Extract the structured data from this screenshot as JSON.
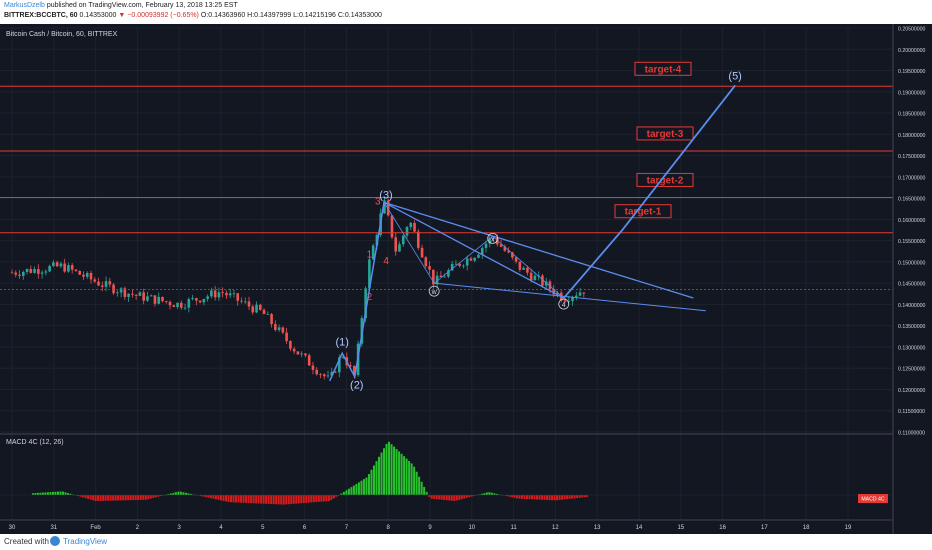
{
  "header": {
    "author": "MarkusDzelb",
    "published": "published on TradingView.com, February 13, 2018 13:25 EST",
    "symbol": "BITTREX:BCCBTC, 60",
    "price": "0.14353000",
    "change": "▼ −0.00093992 (−0.65%)",
    "ohlc": "O:0.14363960 H:0.14397999 L:0.14215196 C:0.14353000"
  },
  "chart": {
    "title": "Bitcoin Cash / Bitcoin, 60, BITTREX",
    "ytick_labels": [
      "0.20500000",
      "0.20000000",
      "0.19500000",
      "0.19000000",
      "0.18500000",
      "0.18000000",
      "0.17500000",
      "0.17000000",
      "0.16500000",
      "0.16000000",
      "0.15500000",
      "0.15000000",
      "0.14500000",
      "0.14000000",
      "0.13500000",
      "0.13000000",
      "0.12500000",
      "0.12000000",
      "0.11500000",
      "0.11000000"
    ],
    "xtick_labels": [
      "30",
      "31",
      "Feb",
      "2",
      "3",
      "4",
      "5",
      "6",
      "7",
      "8",
      "9",
      "10",
      "11",
      "12",
      "13",
      "14",
      "15",
      "16",
      "17",
      "18",
      "19"
    ],
    "targets": [
      {
        "label": "target-1",
        "price_tag": "0.15686242"
      },
      {
        "label": "target-2",
        "price_tag": "0.16515594"
      },
      {
        "label": "target-3",
        "price_tag": "0.17608830"
      },
      {
        "label": "target-4",
        "price_tag": "0.19129309"
      }
    ],
    "current_price_tag": "0.14353000",
    "countdown_tag": "34:43",
    "wave_labels": {
      "w1": "(1)",
      "w2": "(2)",
      "w3": "(3)",
      "w5": "(5)",
      "sub1": "1",
      "sub2": "2",
      "sub3": "3",
      "sub4": "4",
      "w": "w",
      "x": "x",
      "y": "y",
      "z": "4"
    },
    "macd_title": "MACD 4C (12, 26)",
    "macd_ticks": [
      "0.0050",
      "0.0000"
    ],
    "macd_tag": "MACD 4C"
  },
  "footer": {
    "created": "Created with",
    "brand": "TradingView"
  },
  "chart_data": {
    "type": "candlestick",
    "title": "Bitcoin Cash / Bitcoin, 60, BITTREX",
    "ylim": [
      0.11,
      0.205
    ],
    "price_levels": [
      0.15686242,
      0.16515594,
      0.1760883,
      0.19129309
    ],
    "last_price": 0.14353,
    "path_points": [
      [
        0,
        0.1475
      ],
      [
        1.2,
        0.149
      ],
      [
        2.2,
        0.1445
      ],
      [
        3,
        0.142
      ],
      [
        4,
        0.14
      ],
      [
        5,
        0.143
      ],
      [
        6,
        0.138
      ],
      [
        6.8,
        0.129
      ],
      [
        7.6,
        0.122
      ],
      [
        7.9,
        0.1285
      ],
      [
        8.2,
        0.123
      ],
      [
        8.5,
        0.148
      ],
      [
        8.9,
        0.164
      ],
      [
        9.2,
        0.152
      ],
      [
        9.5,
        0.16
      ],
      [
        10.1,
        0.145
      ],
      [
        10.6,
        0.149
      ],
      [
        11.1,
        0.152
      ],
      [
        11.5,
        0.156
      ],
      [
        12.1,
        0.149
      ],
      [
        12.7,
        0.145
      ],
      [
        13.2,
        0.1415
      ],
      [
        13.7,
        0.1435
      ]
    ],
    "projection": [
      [
        13.2,
        0.1415
      ],
      [
        14.6,
        0.1575
      ],
      [
        17.3,
        0.1915
      ]
    ],
    "macd": [
      [
        0.5,
        0.0003
      ],
      [
        1.2,
        0.0006
      ],
      [
        2.0,
        -0.001
      ],
      [
        3.2,
        -0.0008
      ],
      [
        4.0,
        0.0006
      ],
      [
        5.2,
        -0.0012
      ],
      [
        6.5,
        -0.0016
      ],
      [
        7.6,
        -0.001
      ],
      [
        8.5,
        0.003
      ],
      [
        9.0,
        0.009
      ],
      [
        9.6,
        0.005
      ],
      [
        10.0,
        -0.0006
      ],
      [
        10.6,
        -0.001
      ],
      [
        11.4,
        0.0005
      ],
      [
        12.1,
        -0.0006
      ],
      [
        13.0,
        -0.0009
      ],
      [
        13.8,
        -0.0003
      ]
    ]
  }
}
